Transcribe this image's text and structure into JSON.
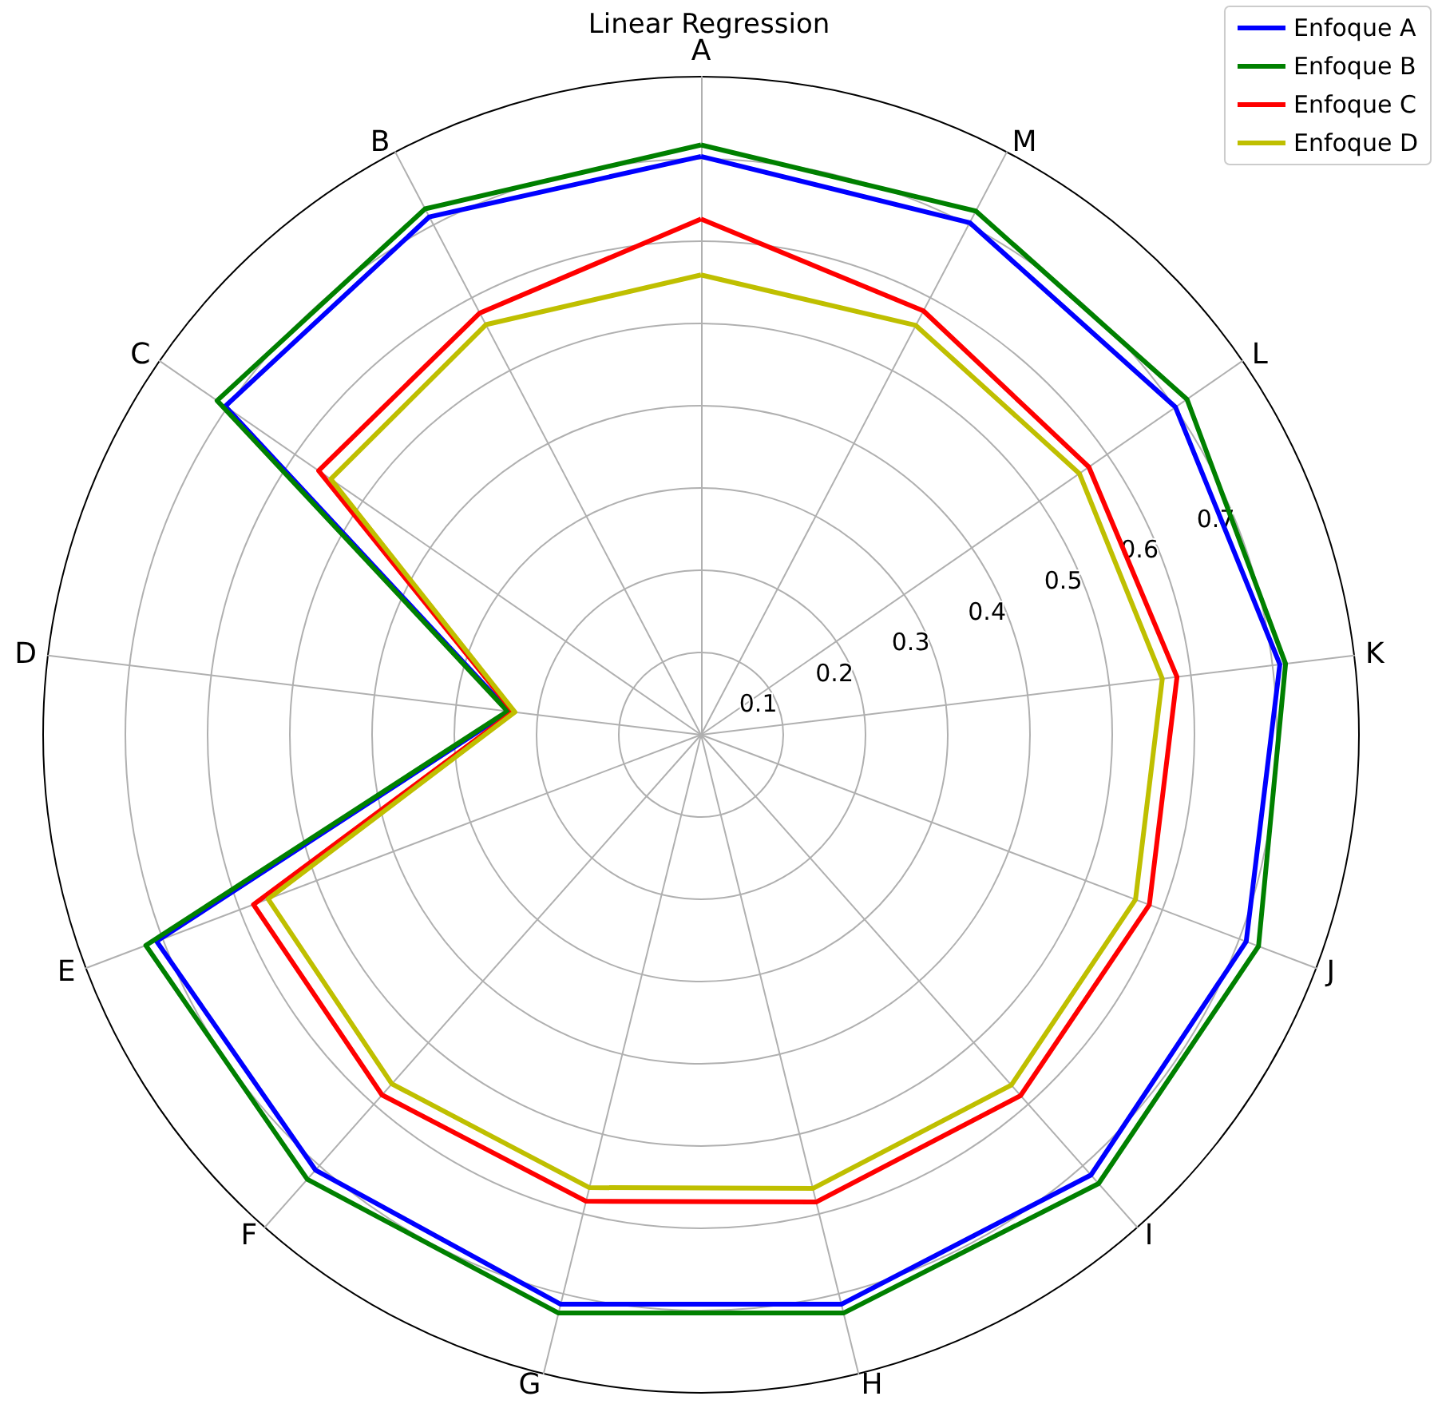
{
  "chart_data": {
    "type": "radar",
    "title": "Linear Regression",
    "categories": [
      "A",
      "M",
      "L",
      "K",
      "J",
      "I",
      "H",
      "G",
      "F",
      "E",
      "D",
      "C",
      "B"
    ],
    "ylim": [
      0,
      0.8
    ],
    "yticks": [
      0.1,
      0.2,
      0.3,
      0.4,
      0.5,
      0.6,
      0.7
    ],
    "grid": true,
    "legend": "top right",
    "series": [
      {
        "name": "Enfoque A",
        "color": "#0000ff",
        "values": [
          0.703,
          0.703,
          0.701,
          0.709,
          0.709,
          0.715,
          0.713,
          0.713,
          0.707,
          0.708,
          0.235,
          0.703,
          0.711
        ]
      },
      {
        "name": "Enfoque B",
        "color": "#008000",
        "values": [
          0.717,
          0.719,
          0.718,
          0.716,
          0.725,
          0.729,
          0.724,
          0.724,
          0.722,
          0.722,
          0.237,
          0.715,
          0.722
        ]
      },
      {
        "name": "Enfoque C",
        "color": "#ff0000",
        "values": [
          0.627,
          0.582,
          0.573,
          0.583,
          0.583,
          0.586,
          0.585,
          0.584,
          0.585,
          0.582,
          0.23,
          0.565,
          0.579
        ]
      },
      {
        "name": "Enfoque D",
        "color": "#bfbf00",
        "values": [
          0.559,
          0.562,
          0.559,
          0.565,
          0.565,
          0.569,
          0.568,
          0.567,
          0.567,
          0.563,
          0.228,
          0.547,
          0.563
        ]
      }
    ]
  }
}
